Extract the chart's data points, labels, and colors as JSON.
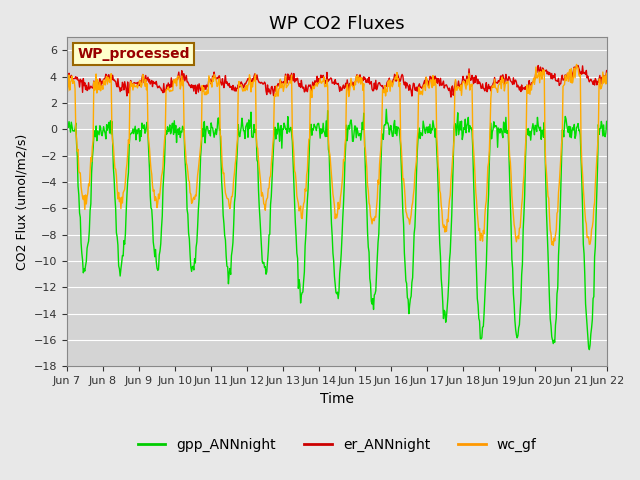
{
  "title": "WP CO2 Fluxes",
  "xlabel": "Time",
  "ylabel": "CO2 Flux (umol/m2/s)",
  "ylim": [
    -18,
    7
  ],
  "yticks": [
    -18,
    -16,
    -14,
    -12,
    -10,
    -8,
    -6,
    -4,
    -2,
    0,
    2,
    4,
    6
  ],
  "x_tick_labels": [
    "Jun 7",
    "Jun 8",
    "Jun 9",
    "Jun 10",
    "Jun 11",
    "Jun 12",
    "Jun 13",
    "Jun 14",
    "Jun 15",
    "Jun 16",
    "Jun 17",
    "Jun 18",
    "Jun 19",
    "Jun 20",
    "Jun 21",
    "Jun 22"
  ],
  "legend_entries": [
    "gpp_ANNnight",
    "er_ANNnight",
    "wc_gf"
  ],
  "legend_colors": [
    "#00cc00",
    "#cc0000",
    "#ff9900"
  ],
  "wp_box_text": "WP_processed",
  "wp_box_facecolor": "#ffffcc",
  "wp_box_edgecolor": "#996600",
  "wp_text_color": "#990000",
  "background_color": "#e8e8e8",
  "plot_bg_color": "#d4d4d4",
  "grid_color": "#ffffff",
  "line_width": 1.0,
  "gpp_color": "#00dd00",
  "er_color": "#dd0000",
  "wc_color": "#ffaa00",
  "n_points_per_day": 48,
  "n_days": 15,
  "title_fontsize": 13
}
